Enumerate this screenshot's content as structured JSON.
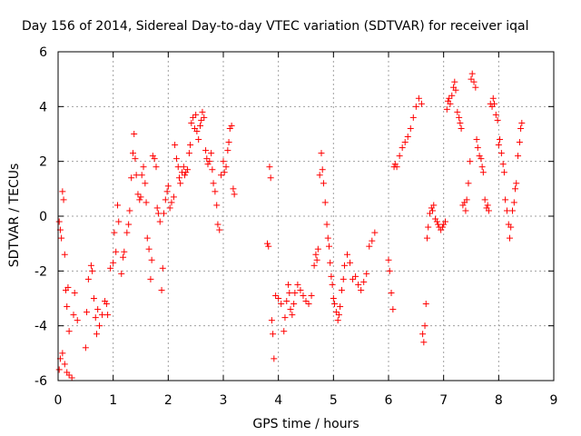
{
  "chart_data": {
    "type": "scatter",
    "title": "Day 156 of 2014, Sidereal Day-to-day VTEC variation (SDTVAR) for receiver iqal",
    "xlabel": "GPS time / hours",
    "ylabel": "SDTVAR / TECUs",
    "xlim": [
      0,
      9
    ],
    "ylim": [
      -6,
      6
    ],
    "grid": true,
    "xticks": [
      "0",
      "1",
      "2",
      "3",
      "4",
      "5",
      "6",
      "7",
      "8",
      "9"
    ],
    "yticks": [
      "-6",
      "-4",
      "-2",
      "0",
      "2",
      "4",
      "6"
    ],
    "marker": "+",
    "series": [
      {
        "name": "SDTVAR",
        "color": "#ff0000",
        "points": [
          [
            0.02,
            -0.2
          ],
          [
            0.04,
            -0.5
          ],
          [
            0.06,
            -0.8
          ],
          [
            0.08,
            0.9
          ],
          [
            0.1,
            0.6
          ],
          [
            0.12,
            -1.4
          ],
          [
            0.14,
            -2.7
          ],
          [
            0.16,
            -3.3
          ],
          [
            0.18,
            -2.6
          ],
          [
            0.2,
            -4.2
          ],
          [
            0.02,
            -5.6
          ],
          [
            0.04,
            -5.2
          ],
          [
            0.08,
            -5.0
          ],
          [
            0.12,
            -5.4
          ],
          [
            0.16,
            -5.7
          ],
          [
            0.2,
            -5.8
          ],
          [
            0.25,
            -5.9
          ],
          [
            0.28,
            -3.6
          ],
          [
            0.3,
            -2.8
          ],
          [
            0.35,
            -3.8
          ],
          [
            0.5,
            -4.8
          ],
          [
            0.52,
            -3.5
          ],
          [
            0.55,
            -2.3
          ],
          [
            0.6,
            -1.8
          ],
          [
            0.62,
            -2.0
          ],
          [
            0.65,
            -3.0
          ],
          [
            0.68,
            -3.7
          ],
          [
            0.7,
            -4.3
          ],
          [
            0.72,
            -3.4
          ],
          [
            0.75,
            -4.0
          ],
          [
            0.8,
            -3.6
          ],
          [
            0.85,
            -3.1
          ],
          [
            0.88,
            -3.2
          ],
          [
            0.9,
            -3.6
          ],
          [
            0.95,
            -1.9
          ],
          [
            1.0,
            -1.7
          ],
          [
            1.02,
            -0.6
          ],
          [
            1.05,
            -1.3
          ],
          [
            1.08,
            0.4
          ],
          [
            1.1,
            -0.2
          ],
          [
            1.15,
            -2.1
          ],
          [
            1.18,
            -1.5
          ],
          [
            1.2,
            -1.3
          ],
          [
            1.25,
            -0.6
          ],
          [
            1.28,
            -0.3
          ],
          [
            1.3,
            0.2
          ],
          [
            1.33,
            1.4
          ],
          [
            1.36,
            2.3
          ],
          [
            1.38,
            3.0
          ],
          [
            1.4,
            2.1
          ],
          [
            1.42,
            1.5
          ],
          [
            1.45,
            0.8
          ],
          [
            1.48,
            0.6
          ],
          [
            1.5,
            0.7
          ],
          [
            1.52,
            1.5
          ],
          [
            1.55,
            1.8
          ],
          [
            1.58,
            1.2
          ],
          [
            1.6,
            0.5
          ],
          [
            1.62,
            -0.8
          ],
          [
            1.65,
            -1.2
          ],
          [
            1.68,
            -2.3
          ],
          [
            1.7,
            -1.6
          ],
          [
            1.72,
            2.2
          ],
          [
            1.75,
            2.1
          ],
          [
            1.78,
            1.8
          ],
          [
            1.8,
            0.3
          ],
          [
            1.82,
            0.1
          ],
          [
            1.85,
            -0.2
          ],
          [
            1.88,
            -2.7
          ],
          [
            1.9,
            -1.9
          ],
          [
            1.92,
            0.1
          ],
          [
            1.95,
            0.6
          ],
          [
            1.98,
            0.9
          ],
          [
            2.0,
            1.1
          ],
          [
            2.03,
            0.3
          ],
          [
            2.06,
            0.5
          ],
          [
            2.1,
            0.7
          ],
          [
            2.12,
            2.6
          ],
          [
            2.15,
            2.1
          ],
          [
            2.18,
            1.8
          ],
          [
            2.2,
            1.4
          ],
          [
            2.22,
            1.2
          ],
          [
            2.25,
            1.6
          ],
          [
            2.28,
            1.8
          ],
          [
            2.3,
            1.5
          ],
          [
            2.32,
            1.6
          ],
          [
            2.35,
            1.7
          ],
          [
            2.38,
            2.3
          ],
          [
            2.4,
            2.6
          ],
          [
            2.42,
            3.4
          ],
          [
            2.45,
            3.6
          ],
          [
            2.48,
            3.2
          ],
          [
            2.5,
            3.7
          ],
          [
            2.52,
            3.1
          ],
          [
            2.55,
            2.8
          ],
          [
            2.58,
            3.3
          ],
          [
            2.6,
            3.5
          ],
          [
            2.62,
            3.8
          ],
          [
            2.65,
            3.6
          ],
          [
            2.68,
            2.4
          ],
          [
            2.7,
            2.1
          ],
          [
            2.72,
            1.9
          ],
          [
            2.75,
            2.0
          ],
          [
            2.78,
            2.3
          ],
          [
            2.8,
            1.7
          ],
          [
            2.82,
            1.2
          ],
          [
            2.85,
            0.9
          ],
          [
            2.88,
            0.4
          ],
          [
            2.9,
            -0.3
          ],
          [
            2.93,
            -0.5
          ],
          [
            2.96,
            1.5
          ],
          [
            3.0,
            2.0
          ],
          [
            3.02,
            1.6
          ],
          [
            3.05,
            1.8
          ],
          [
            3.08,
            2.4
          ],
          [
            3.1,
            2.7
          ],
          [
            3.12,
            3.2
          ],
          [
            3.15,
            3.3
          ],
          [
            3.18,
            1.0
          ],
          [
            3.2,
            0.8
          ],
          [
            3.8,
            -1.0
          ],
          [
            3.82,
            -1.1
          ],
          [
            3.84,
            1.8
          ],
          [
            3.86,
            1.4
          ],
          [
            3.88,
            -3.8
          ],
          [
            3.9,
            -4.3
          ],
          [
            3.92,
            -5.2
          ],
          [
            3.95,
            -2.9
          ],
          [
            4.0,
            -3.0
          ],
          [
            4.05,
            -3.2
          ],
          [
            4.1,
            -4.2
          ],
          [
            4.12,
            -3.7
          ],
          [
            4.15,
            -3.1
          ],
          [
            4.18,
            -2.5
          ],
          [
            4.2,
            -2.8
          ],
          [
            4.22,
            -3.4
          ],
          [
            4.25,
            -3.6
          ],
          [
            4.28,
            -3.2
          ],
          [
            4.3,
            -2.8
          ],
          [
            4.35,
            -2.5
          ],
          [
            4.4,
            -2.7
          ],
          [
            4.45,
            -2.9
          ],
          [
            4.5,
            -3.1
          ],
          [
            4.55,
            -3.2
          ],
          [
            4.6,
            -2.9
          ],
          [
            4.65,
            -1.8
          ],
          [
            4.68,
            -1.4
          ],
          [
            4.7,
            -1.6
          ],
          [
            4.72,
            -1.2
          ],
          [
            4.75,
            1.5
          ],
          [
            4.78,
            2.3
          ],
          [
            4.8,
            1.7
          ],
          [
            4.82,
            1.2
          ],
          [
            4.85,
            0.5
          ],
          [
            4.88,
            -0.3
          ],
          [
            4.9,
            -0.8
          ],
          [
            4.92,
            -1.1
          ],
          [
            4.94,
            -1.7
          ],
          [
            4.96,
            -2.2
          ],
          [
            4.98,
            -2.5
          ],
          [
            5.0,
            -3.0
          ],
          [
            5.02,
            -3.2
          ],
          [
            5.05,
            -3.5
          ],
          [
            5.08,
            -3.8
          ],
          [
            5.1,
            -3.6
          ],
          [
            5.12,
            -3.3
          ],
          [
            5.15,
            -2.7
          ],
          [
            5.18,
            -2.3
          ],
          [
            5.2,
            -1.8
          ],
          [
            5.25,
            -1.4
          ],
          [
            5.3,
            -1.7
          ],
          [
            5.35,
            -2.3
          ],
          [
            5.4,
            -2.2
          ],
          [
            5.45,
            -2.5
          ],
          [
            5.5,
            -2.7
          ],
          [
            5.55,
            -2.4
          ],
          [
            5.6,
            -2.1
          ],
          [
            5.65,
            -1.1
          ],
          [
            5.7,
            -0.9
          ],
          [
            5.75,
            -0.6
          ],
          [
            6.0,
            -1.6
          ],
          [
            6.02,
            -2.0
          ],
          [
            6.05,
            -2.8
          ],
          [
            6.08,
            -3.4
          ],
          [
            6.1,
            1.8
          ],
          [
            6.12,
            1.9
          ],
          [
            6.15,
            1.8
          ],
          [
            6.2,
            2.2
          ],
          [
            6.25,
            2.5
          ],
          [
            6.3,
            2.7
          ],
          [
            6.35,
            2.9
          ],
          [
            6.4,
            3.2
          ],
          [
            6.45,
            3.6
          ],
          [
            6.5,
            4.0
          ],
          [
            6.55,
            4.3
          ],
          [
            6.6,
            4.1
          ],
          [
            6.62,
            -4.3
          ],
          [
            6.64,
            -4.6
          ],
          [
            6.66,
            -4.0
          ],
          [
            6.68,
            -3.2
          ],
          [
            6.7,
            -0.8
          ],
          [
            6.72,
            -0.4
          ],
          [
            6.75,
            0.1
          ],
          [
            6.78,
            0.3
          ],
          [
            6.8,
            0.2
          ],
          [
            6.82,
            0.4
          ],
          [
            6.85,
            -0.1
          ],
          [
            6.88,
            -0.2
          ],
          [
            6.9,
            -0.3
          ],
          [
            6.92,
            -0.4
          ],
          [
            6.95,
            -0.5
          ],
          [
            6.98,
            -0.4
          ],
          [
            7.0,
            -0.3
          ],
          [
            7.03,
            -0.2
          ],
          [
            7.06,
            3.9
          ],
          [
            7.08,
            4.2
          ],
          [
            7.1,
            4.3
          ],
          [
            7.12,
            4.1
          ],
          [
            7.15,
            4.4
          ],
          [
            7.18,
            4.7
          ],
          [
            7.2,
            4.9
          ],
          [
            7.22,
            4.6
          ],
          [
            7.25,
            3.8
          ],
          [
            7.28,
            3.6
          ],
          [
            7.3,
            3.4
          ],
          [
            7.32,
            3.2
          ],
          [
            7.35,
            0.4
          ],
          [
            7.38,
            0.5
          ],
          [
            7.4,
            0.2
          ],
          [
            7.42,
            0.6
          ],
          [
            7.45,
            1.2
          ],
          [
            7.48,
            2.0
          ],
          [
            7.5,
            5.0
          ],
          [
            7.52,
            5.2
          ],
          [
            7.55,
            4.9
          ],
          [
            7.58,
            4.7
          ],
          [
            7.6,
            2.8
          ],
          [
            7.62,
            2.5
          ],
          [
            7.65,
            2.2
          ],
          [
            7.68,
            2.1
          ],
          [
            7.7,
            1.8
          ],
          [
            7.72,
            1.6
          ],
          [
            7.75,
            0.6
          ],
          [
            7.78,
            0.3
          ],
          [
            7.8,
            0.4
          ],
          [
            7.82,
            0.2
          ],
          [
            7.85,
            4.1
          ],
          [
            7.88,
            4.0
          ],
          [
            7.9,
            4.3
          ],
          [
            7.92,
            4.1
          ],
          [
            7.95,
            3.7
          ],
          [
            7.98,
            3.5
          ],
          [
            8.0,
            2.6
          ],
          [
            8.02,
            2.8
          ],
          [
            8.05,
            2.3
          ],
          [
            8.08,
            1.9
          ],
          [
            8.1,
            1.6
          ],
          [
            8.12,
            0.6
          ],
          [
            8.15,
            0.2
          ],
          [
            8.18,
            -0.3
          ],
          [
            8.2,
            -0.8
          ],
          [
            8.22,
            -0.4
          ],
          [
            8.25,
            0.2
          ],
          [
            8.28,
            0.5
          ],
          [
            8.3,
            1.0
          ],
          [
            8.32,
            1.2
          ],
          [
            8.35,
            2.2
          ],
          [
            8.38,
            2.7
          ],
          [
            8.4,
            3.2
          ],
          [
            8.42,
            3.4
          ]
        ]
      }
    ]
  }
}
